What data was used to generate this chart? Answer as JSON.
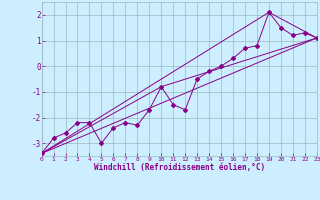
{
  "xlabel": "Windchill (Refroidissement éolien,°C)",
  "bg_color": "#cceeff",
  "line_color": "#880088",
  "grid_color": "#99bbbb",
  "x_min": 0,
  "x_max": 23,
  "y_min": -3.5,
  "y_max": 2.5,
  "yticks": [
    -3,
    -2,
    -1,
    0,
    1,
    2
  ],
  "xticks": [
    0,
    1,
    2,
    3,
    4,
    5,
    6,
    7,
    8,
    9,
    10,
    11,
    12,
    13,
    14,
    15,
    16,
    17,
    18,
    19,
    20,
    21,
    22,
    23
  ],
  "line1_x": [
    0,
    1,
    2,
    3,
    4,
    5,
    6,
    7,
    8,
    9,
    10,
    11,
    12,
    13,
    14,
    15,
    16,
    17,
    18,
    19,
    20,
    21,
    22,
    23
  ],
  "line1_y": [
    -3.4,
    -2.8,
    -2.6,
    -2.2,
    -2.2,
    -3.0,
    -2.4,
    -2.2,
    -2.3,
    -1.7,
    -0.8,
    -1.5,
    -1.7,
    -0.5,
    -0.2,
    0.0,
    0.3,
    0.7,
    0.8,
    2.1,
    1.5,
    1.2,
    1.3,
    1.1
  ],
  "line2_x": [
    0,
    23
  ],
  "line2_y": [
    -3.4,
    1.1
  ],
  "line3_x": [
    0,
    10,
    23
  ],
  "line3_y": [
    -3.4,
    -0.8,
    1.1
  ],
  "line4_x": [
    0,
    19,
    23
  ],
  "line4_y": [
    -3.4,
    2.1,
    1.1
  ]
}
